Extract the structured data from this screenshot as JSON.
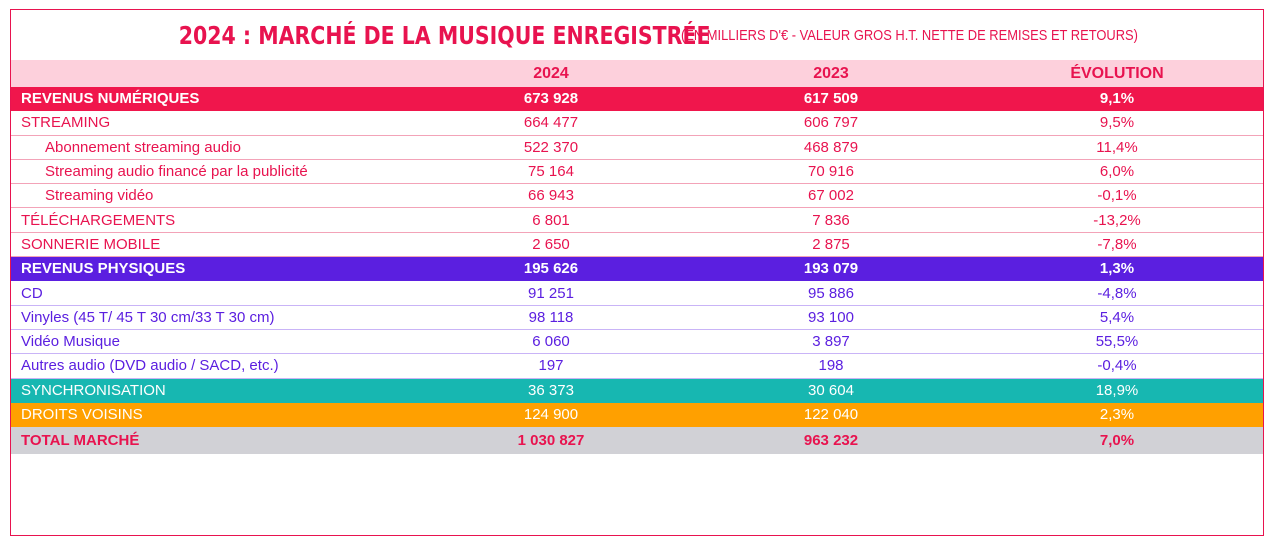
{
  "title": {
    "main": "2024 : MARCHÉ DE LA MUSIQUE ENREGISTRÉE",
    "subtitle": "(EN MILLIERS D'€ - VALEUR GROS H.T. NETTE DE REMISES ET RETOURS)"
  },
  "columns": [
    "2024",
    "2023",
    "ÉVOLUTION"
  ],
  "colors": {
    "pink": "#e8134f",
    "numerique": "#f0164c",
    "physique": "#5b1fe0",
    "synchronisation": "#17b7b1",
    "droits_voisins": "#ffa000",
    "total": "#d1d1d6"
  },
  "rows": {
    "revenus_numeriques": {
      "label": "REVENUS NUMÉRIQUES",
      "v2024": "673 928",
      "v2023": "617 509",
      "evolution": "9,1%"
    },
    "streaming": {
      "label": "STREAMING",
      "v2024": "664 477",
      "v2023": "606 797",
      "evolution": "9,5%"
    },
    "abonnement": {
      "label": "Abonnement streaming audio",
      "v2024": "522 370",
      "v2023": "468 879",
      "evolution": "11,4%"
    },
    "pub": {
      "label": "Streaming audio financé par la publicité",
      "v2024": "75 164",
      "v2023": "70 916",
      "evolution": "6,0%"
    },
    "video": {
      "label": "Streaming vidéo",
      "v2024": "66 943",
      "v2023": "67 002",
      "evolution": "-0,1%"
    },
    "telechargements": {
      "label": "TÉLÉCHARGEMENTS",
      "v2024": "6 801",
      "v2023": "7 836",
      "evolution": "-13,2%"
    },
    "sonnerie": {
      "label": "SONNERIE MOBILE",
      "v2024": "2 650",
      "v2023": "2 875",
      "evolution": "-7,8%"
    },
    "revenus_physiques": {
      "label": "REVENUS PHYSIQUES",
      "v2024": "195 626",
      "v2023": "193 079",
      "evolution": "1,3%"
    },
    "cd": {
      "label": "CD",
      "v2024": "91 251",
      "v2023": "95 886",
      "evolution": "-4,8%"
    },
    "vinyles": {
      "label": "Vinyles (45 T/ 45 T 30 cm/33 T 30 cm)",
      "v2024": "98 118",
      "v2023": "93 100",
      "evolution": "5,4%"
    },
    "video_musique": {
      "label": "Vidéo Musique",
      "v2024": "6 060",
      "v2023": "3 897",
      "evolution": "55,5%"
    },
    "autres_audio": {
      "label": "Autres audio (DVD audio / SACD, etc.)",
      "v2024": "197",
      "v2023": "198",
      "evolution": "-0,4%"
    },
    "synchronisation": {
      "label": "SYNCHRONISATION",
      "v2024": "36 373",
      "v2023": "30 604",
      "evolution": "18,9%"
    },
    "droits_voisins": {
      "label": "DROITS VOISINS",
      "v2024": "124 900",
      "v2023": "122 040",
      "evolution": "2,3%"
    },
    "total": {
      "label": "TOTAL MARCHÉ",
      "v2024": "1 030 827",
      "v2023": "963 232",
      "evolution": "7,0%"
    }
  }
}
